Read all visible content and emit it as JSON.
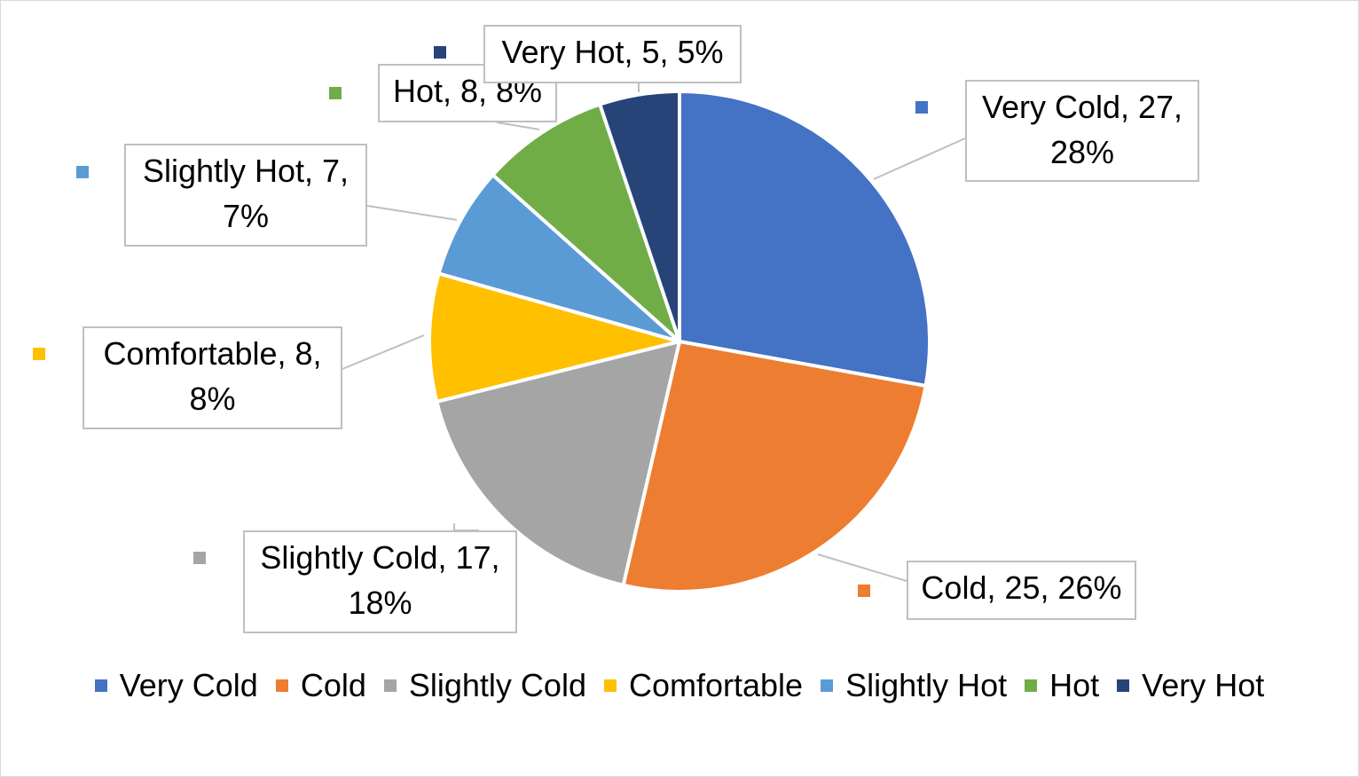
{
  "chart_data": {
    "type": "pie",
    "title": "",
    "categories": [
      "Very Cold",
      "Cold",
      "Slightly Cold",
      "Comfortable",
      "Slightly Hot",
      "Hot",
      "Very Hot"
    ],
    "values": [
      27,
      25,
      17,
      8,
      7,
      8,
      5
    ],
    "percentages": [
      "28%",
      "26%",
      "18%",
      "8%",
      "7%",
      "8%",
      "5%"
    ],
    "colors": [
      "#4472C4",
      "#ED7D31",
      "#A5A5A5",
      "#FFC000",
      "#5B9BD5",
      "#70AD47",
      "#264478"
    ],
    "data_labels": [
      {
        "line1": "Very Cold, 27,",
        "line2": "28%"
      },
      {
        "line1": "Cold, 25, 26%",
        "line2": ""
      },
      {
        "line1": "Slightly Cold, 17,",
        "line2": "18%"
      },
      {
        "line1": "Comfortable, 8,",
        "line2": "8%"
      },
      {
        "line1": "Slightly Hot, 7,",
        "line2": "7%"
      },
      {
        "line1": "Hot, 8, 8%",
        "line2": ""
      },
      {
        "line1": "Very Hot, 5, 5%",
        "line2": ""
      }
    ],
    "legend": {
      "position": "bottom",
      "entries": [
        "Very Cold",
        "Cold",
        "Slightly Cold",
        "Comfortable",
        "Slightly Hot",
        "Hot",
        "Very Hot"
      ]
    }
  }
}
